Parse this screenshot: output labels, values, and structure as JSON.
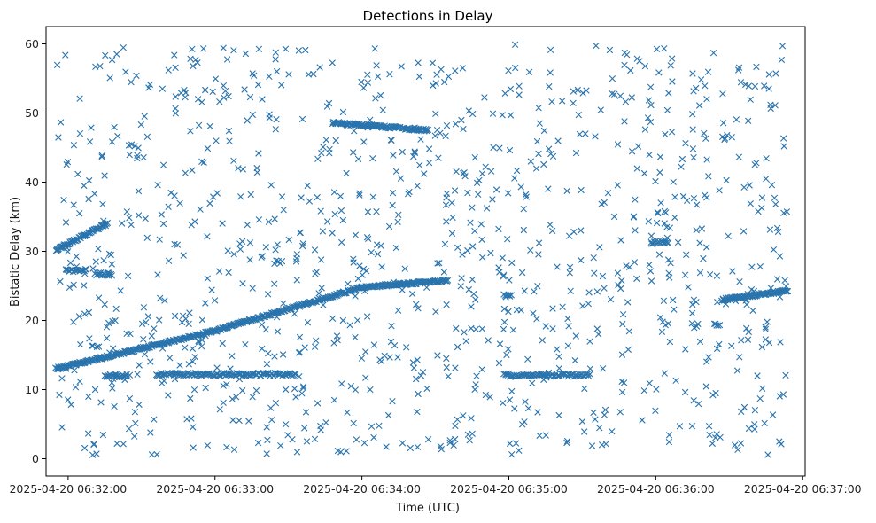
{
  "chart_data": {
    "type": "scatter",
    "title": "Detections in Delay",
    "xlabel": "Time (UTC)",
    "ylabel": "Bistatic Delay (km)",
    "x_unit": "UTC timestamp",
    "xlim": [
      "2025-04-20 06:31:51",
      "2025-04-20 06:37:01"
    ],
    "ylim": [
      -2.5,
      62.5
    ],
    "x_ticks": [
      "2025-04-20 06:32:00",
      "2025-04-20 06:33:00",
      "2025-04-20 06:34:00",
      "2025-04-20 06:35:00",
      "2025-04-20 06:36:00",
      "2025-04-20 06:37:00"
    ],
    "y_ticks": [
      0,
      10,
      20,
      30,
      40,
      50,
      60
    ],
    "marker": "x",
    "color": "#1f77b4",
    "grid": false,
    "legend": "none",
    "series": [
      {
        "data_window": [
          "2025-04-20 06:31:55",
          "2025-04-20 06:36:54"
        ],
        "points_approx": 1700,
        "tracks": [
          {
            "from": [
              "2025-04-20 06:31:55",
              13.0
            ],
            "to": [
              "2025-04-20 06:33:00",
              18.5
            ]
          },
          {
            "from": [
              "2025-04-20 06:33:00",
              18.5
            ],
            "to": [
              "2025-04-20 06:34:00",
              24.8
            ]
          },
          {
            "from": [
              "2025-04-20 06:34:00",
              24.8
            ],
            "to": [
              "2025-04-20 06:34:35",
              25.8
            ]
          },
          {
            "from": [
              "2025-04-20 06:31:55",
              30.2
            ],
            "to": [
              "2025-04-20 06:32:16",
              34.0
            ]
          },
          {
            "from": [
              "2025-04-20 06:33:48",
              48.6
            ],
            "to": [
              "2025-04-20 06:34:27",
              47.5
            ]
          },
          {
            "from": [
              "2025-04-20 06:36:27",
              23.0
            ],
            "to": [
              "2025-04-20 06:36:54",
              24.3
            ]
          }
        ],
        "bands": [
          {
            "y": 12.2,
            "from": "2025-04-20 06:32:36",
            "to": "2025-04-20 06:33:33"
          },
          {
            "y": 12.1,
            "from": "2025-04-20 06:34:58",
            "to": "2025-04-20 06:35:33"
          },
          {
            "y": 12.0,
            "from": "2025-04-20 06:32:15",
            "to": "2025-04-20 06:32:25"
          },
          {
            "y": 26.7,
            "from": "2025-04-20 06:32:11",
            "to": "2025-04-20 06:32:18"
          },
          {
            "y": 27.2,
            "from": "2025-04-20 06:31:59",
            "to": "2025-04-20 06:32:07"
          },
          {
            "y": 31.3,
            "from": "2025-04-20 06:35:58",
            "to": "2025-04-20 06:36:05"
          },
          {
            "y": 23.6,
            "from": "2025-04-20 06:34:58",
            "to": "2025-04-20 06:35:01"
          },
          {
            "y": 19.3,
            "from": "2025-04-20 06:36:24",
            "to": "2025-04-20 06:36:26"
          }
        ],
        "clutter": {
          "y_range": [
            0.5,
            60
          ],
          "from": "2025-04-20 06:31:55",
          "to": "2025-04-20 06:36:54",
          "count_approx": 1100
        }
      }
    ]
  }
}
